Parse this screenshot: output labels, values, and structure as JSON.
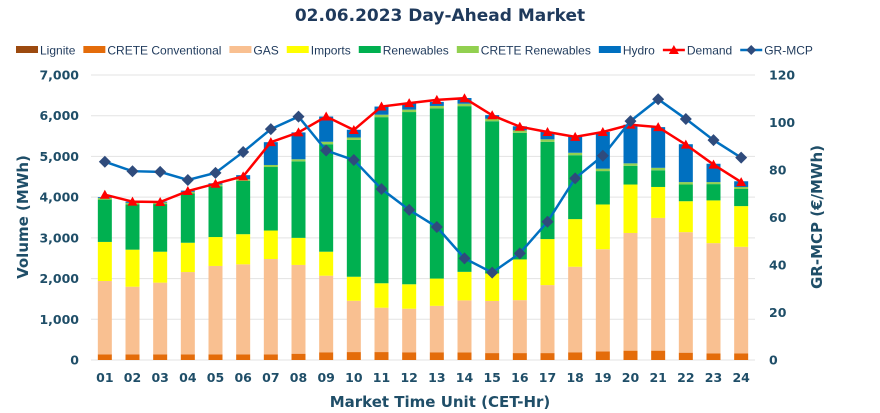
{
  "chart_data": {
    "type": "bar",
    "title": "02.06.2023  Day-Ahead Market",
    "xlabel": "Market Time Unit (CET-Hr)",
    "ylabel": "Volume (MWh)",
    "y2label": "GR-MCP (€/MWh)",
    "ylim": [
      0,
      7000
    ],
    "y2lim": [
      0,
      120
    ],
    "yticks": [
      "0",
      "1,000",
      "2,000",
      "3,000",
      "4,000",
      "5,000",
      "6,000",
      "7,000"
    ],
    "y2ticks": [
      "0",
      "20",
      "40",
      "60",
      "80",
      "100",
      "120"
    ],
    "grid": true,
    "legend_position": "top",
    "categories": [
      "01",
      "02",
      "03",
      "04",
      "05",
      "06",
      "07",
      "08",
      "09",
      "10",
      "11",
      "12",
      "13",
      "14",
      "15",
      "16",
      "17",
      "18",
      "19",
      "20",
      "21",
      "22",
      "23",
      "24"
    ],
    "series": [
      {
        "name": "Lignite",
        "kind": "stacked-bar",
        "color": "#9c4a0f",
        "values": [
          0,
          0,
          0,
          0,
          0,
          0,
          0,
          0,
          0,
          0,
          0,
          0,
          0,
          0,
          0,
          0,
          0,
          0,
          0,
          0,
          0,
          0,
          0,
          0
        ]
      },
      {
        "name": "CRETE Conventional",
        "kind": "stacked-bar",
        "color": "#e46c0a",
        "values": [
          140,
          140,
          140,
          140,
          140,
          140,
          140,
          155,
          190,
          195,
          195,
          190,
          190,
          185,
          170,
          170,
          170,
          190,
          210,
          230,
          230,
          180,
          160,
          160
        ]
      },
      {
        "name": "GAS",
        "kind": "stacked-bar",
        "color": "#f9c091",
        "values": [
          1800,
          1660,
          1760,
          2020,
          2170,
          2210,
          2340,
          2180,
          1880,
          1260,
          1090,
          1070,
          1140,
          1280,
          1280,
          1300,
          1670,
          2100,
          2510,
          2890,
          3260,
          2960,
          2710,
          2620
        ]
      },
      {
        "name": "Imports",
        "kind": "stacked-bar",
        "color": "#ffff00",
        "values": [
          960,
          910,
          760,
          720,
          710,
          740,
          700,
          665,
          590,
          590,
          600,
          600,
          670,
          700,
          675,
          1000,
          1130,
          1170,
          1100,
          1190,
          760,
          760,
          1050,
          1000
        ]
      },
      {
        "name": "Renewables",
        "kind": "stacked-bar",
        "color": "#00b050",
        "values": [
          1040,
          1110,
          1170,
          1210,
          1250,
          1310,
          1560,
          1880,
          2640,
          3360,
          4080,
          4230,
          4180,
          4070,
          3740,
          3110,
          2390,
          1570,
          820,
          460,
          410,
          410,
          400,
          420
        ]
      },
      {
        "name": "CRETE Renewables",
        "kind": "stacked-bar",
        "color": "#92d050",
        "values": [
          40,
          40,
          40,
          40,
          40,
          40,
          50,
          50,
          60,
          60,
          60,
          60,
          60,
          60,
          60,
          60,
          60,
          60,
          60,
          60,
          60,
          60,
          50,
          50
        ]
      },
      {
        "name": "Hydro",
        "kind": "stacked-bar",
        "color": "#0070c0",
        "values": [
          20,
          30,
          20,
          30,
          30,
          100,
          560,
          660,
          620,
          190,
          200,
          150,
          100,
          140,
          90,
          100,
          180,
          390,
          900,
          950,
          1000,
          930,
          450,
          140
        ]
      },
      {
        "name": "Demand",
        "kind": "line",
        "axis": "left",
        "color": "#ff0000",
        "marker": "triangle",
        "values": [
          4060,
          3890,
          3880,
          4150,
          4330,
          4510,
          5350,
          5590,
          5980,
          5650,
          6225,
          6310,
          6390,
          6430,
          6010,
          5730,
          5600,
          5480,
          5600,
          5780,
          5720,
          5290,
          4800,
          4370
        ]
      },
      {
        "name": "GR-MCP",
        "kind": "line",
        "axis": "right",
        "color": "#0070c0",
        "marker_color": "#2f4b7c",
        "marker": "diamond",
        "values": [
          83.5,
          79.5,
          79.2,
          75.8,
          78.8,
          87.6,
          97.2,
          102.5,
          88.2,
          84.2,
          72.0,
          63.2,
          56.0,
          42.8,
          36.8,
          44.9,
          58.2,
          76.5,
          86.0,
          100.6,
          109.8,
          101.5,
          92.6,
          85.2
        ]
      }
    ]
  }
}
